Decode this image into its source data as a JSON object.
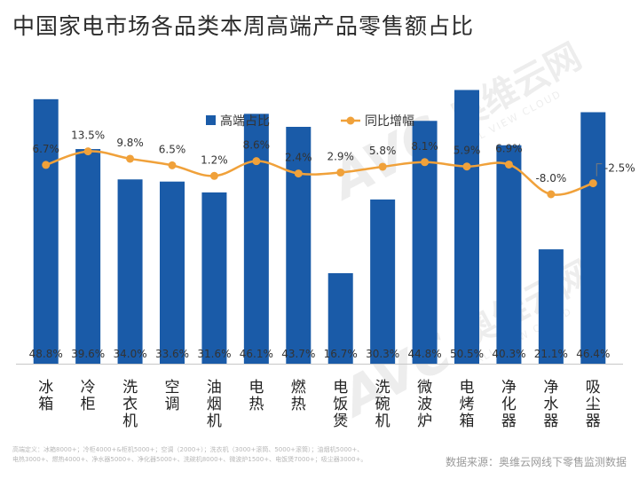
{
  "title": "中国家电市场各品类本周高端产品零售额占比",
  "chart_data": {
    "type": "bar+line",
    "title": "中国家电市场各品类本周高端产品零售额占比",
    "categories": [
      "冰箱",
      "冷柜",
      "洗衣机",
      "空调",
      "油烟机",
      "电热",
      "燃热",
      "电饭煲",
      "洗碗机",
      "微波炉",
      "电烤箱",
      "净化器",
      "净水器",
      "吸尘器"
    ],
    "series": [
      {
        "name": "高端占比",
        "type": "bar",
        "color": "#1a5ba8",
        "values": [
          48.8,
          39.6,
          34.0,
          33.6,
          31.6,
          46.1,
          43.7,
          16.7,
          30.3,
          44.8,
          50.5,
          40.3,
          21.1,
          46.4
        ],
        "labels": [
          "48.8%",
          "39.6%",
          "34.0%",
          "33.6%",
          "31.6%",
          "46.1%",
          "43.7%",
          "16.7%",
          "30.3%",
          "44.8%",
          "50.5%",
          "40.3%",
          "21.1%",
          "46.4%"
        ]
      },
      {
        "name": "同比增幅",
        "type": "line",
        "color": "#f0a13a",
        "values": [
          6.7,
          13.5,
          9.8,
          6.5,
          1.2,
          8.6,
          2.4,
          2.9,
          5.8,
          8.1,
          5.9,
          6.9,
          -8.0,
          -2.5
        ],
        "labels": [
          "6.7%",
          "13.5%",
          "9.8%",
          "6.5%",
          "1.2%",
          "8.6%",
          "2.4%",
          "2.9%",
          "5.8%",
          "8.1%",
          "5.9%",
          "6.9%",
          "-8.0%",
          "-2.5%"
        ]
      }
    ],
    "bar_ylim": [
      0,
      62
    ],
    "line_ylim": [
      -40,
      22
    ],
    "legend_position": "top-center",
    "grid": false
  },
  "watermark": {
    "brand": "AVC",
    "cn": "奥维云网",
    "en": "ALL VIEW CLOUD"
  },
  "footnote": {
    "lines": [
      "高端定义：冰箱8000+；冷柜4000+&柜机5000+；空调（2000+）；洗衣机（3000+滚筒、5000+滚筒）；油烟机5000+、",
      "电热3000+、燃热4000+、净水器5000+、净化器5000+、洗碗机8000+、微波炉1500+、电饭煲7000+；吸尘器3000+。"
    ]
  },
  "source": "数据来源：奥维云网线下零售监测数据"
}
